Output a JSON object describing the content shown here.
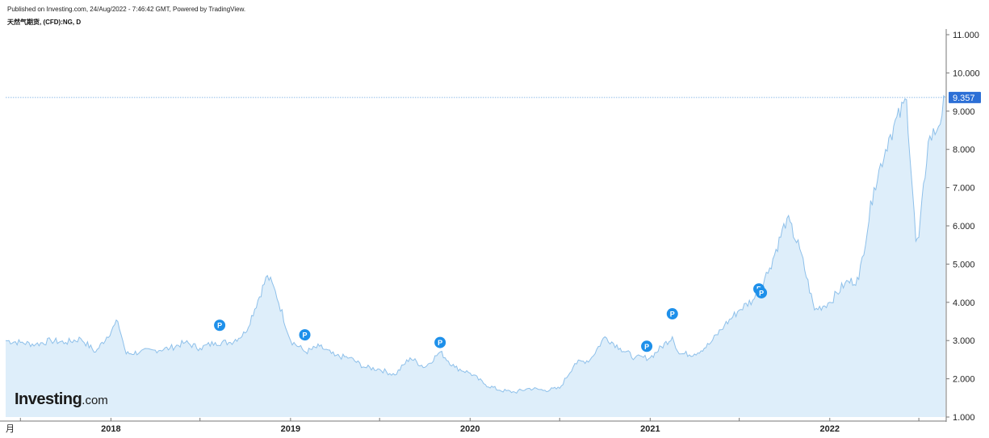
{
  "header": {
    "published_line": "Published on Investing.com, 24/Aug/2022 - 7:46:42 GMT, Powered by TradingView.",
    "symbol_line": "天然气期货, (CFD):NG, D"
  },
  "logo": {
    "brand": "Investing",
    "suffix": ".com"
  },
  "colors": {
    "line": "#8ec0ea",
    "area": "#deeefa",
    "price_label_bg": "#2c6fd6",
    "marker": "#1e90ea",
    "axis": "#777777"
  },
  "chart_data": {
    "type": "area",
    "title": "",
    "xlabel": "",
    "ylabel": "",
    "ylim": [
      1.0,
      11.0
    ],
    "y_ticks": [
      "11.000",
      "10.000",
      "9.000",
      "8.000",
      "7.000",
      "6.000",
      "5.000",
      "4.000",
      "3.000",
      "2.000",
      "1.000"
    ],
    "y_tick_values": [
      11,
      10,
      9,
      8,
      7,
      6,
      5,
      4,
      3,
      2,
      1
    ],
    "x_start_label": "月",
    "x_ticks": [
      {
        "label": "2018",
        "date": "2018-01-01"
      },
      {
        "label": "2019",
        "date": "2019-01-01"
      },
      {
        "label": "2020",
        "date": "2020-01-01"
      },
      {
        "label": "2021",
        "date": "2021-01-01"
      },
      {
        "label": "2022",
        "date": "2022-01-01"
      }
    ],
    "x_range": [
      "2017-06-01",
      "2022-08-24"
    ],
    "last_price": 9.357,
    "last_price_label": "9.357",
    "series": [
      {
        "values": [
          [
            "2017-06-01",
            3.0
          ],
          [
            "2017-07-01",
            2.95
          ],
          [
            "2017-08-01",
            2.9
          ],
          [
            "2017-09-01",
            3.0
          ],
          [
            "2017-10-01",
            2.95
          ],
          [
            "2017-11-01",
            3.05
          ],
          [
            "2017-12-01",
            2.7
          ],
          [
            "2018-01-15",
            3.5
          ],
          [
            "2018-02-01",
            2.65
          ],
          [
            "2018-03-01",
            2.7
          ],
          [
            "2018-04-01",
            2.75
          ],
          [
            "2018-05-01",
            2.8
          ],
          [
            "2018-06-01",
            2.95
          ],
          [
            "2018-07-01",
            2.8
          ],
          [
            "2018-08-01",
            2.95
          ],
          [
            "2018-09-01",
            2.95
          ],
          [
            "2018-10-01",
            3.2
          ],
          [
            "2018-11-15",
            4.7
          ],
          [
            "2018-12-01",
            4.3
          ],
          [
            "2019-01-01",
            3.0
          ],
          [
            "2019-02-01",
            2.7
          ],
          [
            "2019-03-01",
            2.85
          ],
          [
            "2019-04-01",
            2.6
          ],
          [
            "2019-05-01",
            2.55
          ],
          [
            "2019-06-01",
            2.3
          ],
          [
            "2019-07-01",
            2.25
          ],
          [
            "2019-08-01",
            2.1
          ],
          [
            "2019-09-01",
            2.55
          ],
          [
            "2019-10-01",
            2.3
          ],
          [
            "2019-11-01",
            2.7
          ],
          [
            "2019-12-01",
            2.3
          ],
          [
            "2020-01-01",
            2.15
          ],
          [
            "2020-02-01",
            1.85
          ],
          [
            "2020-03-01",
            1.7
          ],
          [
            "2020-04-01",
            1.65
          ],
          [
            "2020-05-01",
            1.75
          ],
          [
            "2020-06-01",
            1.7
          ],
          [
            "2020-07-01",
            1.75
          ],
          [
            "2020-08-01",
            2.4
          ],
          [
            "2020-09-01",
            2.5
          ],
          [
            "2020-10-01",
            3.1
          ],
          [
            "2020-11-01",
            2.8
          ],
          [
            "2020-12-01",
            2.55
          ],
          [
            "2021-01-01",
            2.55
          ],
          [
            "2021-02-15",
            3.1
          ],
          [
            "2021-03-01",
            2.65
          ],
          [
            "2021-04-01",
            2.65
          ],
          [
            "2021-05-01",
            2.9
          ],
          [
            "2021-06-01",
            3.4
          ],
          [
            "2021-07-01",
            3.8
          ],
          [
            "2021-08-01",
            4.1
          ],
          [
            "2021-09-01",
            4.9
          ],
          [
            "2021-10-06",
            6.2
          ],
          [
            "2021-11-01",
            5.4
          ],
          [
            "2021-12-01",
            3.8
          ],
          [
            "2022-01-01",
            4.0
          ],
          [
            "2022-02-01",
            4.5
          ],
          [
            "2022-03-01",
            4.6
          ],
          [
            "2022-04-01",
            7.0
          ],
          [
            "2022-05-01",
            8.3
          ],
          [
            "2022-06-06",
            9.3
          ],
          [
            "2022-06-25",
            5.6
          ],
          [
            "2022-07-01",
            5.7
          ],
          [
            "2022-07-20",
            8.2
          ],
          [
            "2022-08-10",
            8.6
          ],
          [
            "2022-08-24",
            9.36
          ]
        ]
      }
    ],
    "markers": [
      {
        "date": "2018-08-10",
        "value": 3.4,
        "label": "P"
      },
      {
        "date": "2019-01-30",
        "value": 3.15,
        "label": "P"
      },
      {
        "date": "2019-11-01",
        "value": 2.95,
        "label": "P"
      },
      {
        "date": "2020-12-25",
        "value": 2.85,
        "label": "P"
      },
      {
        "date": "2021-02-15",
        "value": 3.7,
        "label": "P"
      },
      {
        "date": "2021-08-10",
        "value": 4.35,
        "label": "P"
      },
      {
        "date": "2021-08-15",
        "value": 4.25,
        "label": "P"
      }
    ]
  }
}
